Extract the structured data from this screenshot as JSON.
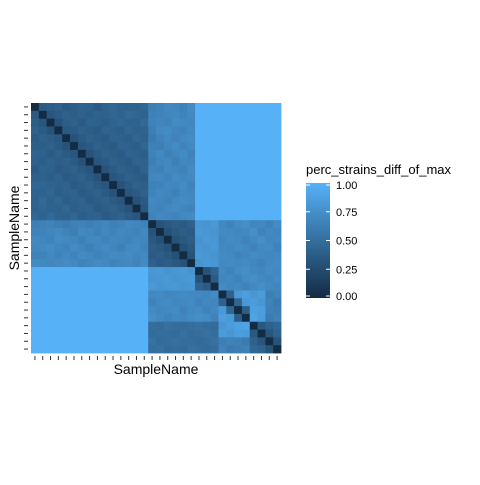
{
  "chart_data": {
    "type": "heatmap",
    "title": "",
    "xlabel": "SampleName",
    "ylabel": "SampleName",
    "legend": {
      "title": "perc_strains_diff_of_max",
      "ticks": [
        "0.00",
        "0.25",
        "0.50",
        "0.75",
        "1.00"
      ],
      "tick_values": [
        0,
        0.25,
        0.5,
        0.75,
        1.0
      ],
      "placement": "right",
      "color_low": "#132B43",
      "color_high": "#56B1F7"
    },
    "n_samples": 32,
    "x_tick_labels": "not shown",
    "y_tick_labels": "not shown",
    "grid": false,
    "value_range": [
      0,
      1
    ],
    "values": [
      [
        0.0,
        0.35,
        0.38,
        0.4,
        0.36,
        0.38,
        0.42,
        0.4,
        0.36,
        0.4,
        0.45,
        0.42,
        0.4,
        0.42,
        0.45,
        0.62,
        0.65,
        0.7,
        0.68,
        0.65,
        0.72,
        1.0,
        1.0,
        1.0,
        1.0,
        1.0,
        1.0,
        1.0,
        1.0,
        1.0,
        1.0,
        1.0
      ],
      [
        0.35,
        0.0,
        0.32,
        0.36,
        0.4,
        0.38,
        0.4,
        0.38,
        0.42,
        0.4,
        0.44,
        0.42,
        0.46,
        0.44,
        0.42,
        0.64,
        0.66,
        0.68,
        0.7,
        0.66,
        0.7,
        1.0,
        1.0,
        1.0,
        1.0,
        1.0,
        1.0,
        1.0,
        1.0,
        1.0,
        1.0,
        1.0
      ],
      [
        0.38,
        0.32,
        0.0,
        0.3,
        0.38,
        0.4,
        0.36,
        0.42,
        0.4,
        0.38,
        0.42,
        0.44,
        0.4,
        0.42,
        0.46,
        0.66,
        0.68,
        0.66,
        0.72,
        0.7,
        0.68,
        1.0,
        1.0,
        1.0,
        1.0,
        1.0,
        1.0,
        1.0,
        1.0,
        1.0,
        1.0,
        1.0
      ],
      [
        0.4,
        0.36,
        0.3,
        0.0,
        0.34,
        0.36,
        0.4,
        0.38,
        0.36,
        0.42,
        0.4,
        0.38,
        0.44,
        0.4,
        0.42,
        0.62,
        0.7,
        0.72,
        0.68,
        0.66,
        0.7,
        1.0,
        1.0,
        1.0,
        1.0,
        1.0,
        1.0,
        1.0,
        1.0,
        1.0,
        1.0,
        1.0
      ],
      [
        0.36,
        0.4,
        0.38,
        0.34,
        0.0,
        0.3,
        0.36,
        0.4,
        0.38,
        0.36,
        0.42,
        0.4,
        0.38,
        0.44,
        0.4,
        0.6,
        0.66,
        0.7,
        0.66,
        0.7,
        0.72,
        1.0,
        1.0,
        1.0,
        1.0,
        1.0,
        1.0,
        1.0,
        1.0,
        1.0,
        1.0,
        1.0
      ],
      [
        0.38,
        0.38,
        0.4,
        0.36,
        0.3,
        0.0,
        0.32,
        0.36,
        0.4,
        0.38,
        0.36,
        0.42,
        0.4,
        0.38,
        0.44,
        0.64,
        0.62,
        0.68,
        0.72,
        0.66,
        0.7,
        1.0,
        1.0,
        1.0,
        1.0,
        1.0,
        1.0,
        1.0,
        1.0,
        1.0,
        1.0,
        1.0
      ],
      [
        0.42,
        0.4,
        0.36,
        0.4,
        0.36,
        0.32,
        0.0,
        0.3,
        0.36,
        0.4,
        0.38,
        0.36,
        0.42,
        0.4,
        0.38,
        0.66,
        0.7,
        0.64,
        0.68,
        0.72,
        0.66,
        1.0,
        1.0,
        1.0,
        1.0,
        1.0,
        1.0,
        1.0,
        1.0,
        1.0,
        1.0,
        1.0
      ],
      [
        0.4,
        0.38,
        0.42,
        0.38,
        0.4,
        0.36,
        0.3,
        0.0,
        0.32,
        0.36,
        0.4,
        0.38,
        0.36,
        0.42,
        0.4,
        0.62,
        0.68,
        0.7,
        0.64,
        0.7,
        0.68,
        1.0,
        1.0,
        1.0,
        1.0,
        1.0,
        1.0,
        1.0,
        1.0,
        1.0,
        1.0,
        1.0
      ],
      [
        0.36,
        0.42,
        0.4,
        0.36,
        0.38,
        0.4,
        0.36,
        0.32,
        0.0,
        0.3,
        0.36,
        0.4,
        0.38,
        0.36,
        0.42,
        0.66,
        0.64,
        0.7,
        0.68,
        0.66,
        0.72,
        1.0,
        1.0,
        1.0,
        1.0,
        1.0,
        1.0,
        1.0,
        1.0,
        1.0,
        1.0,
        1.0
      ],
      [
        0.4,
        0.4,
        0.38,
        0.42,
        0.36,
        0.38,
        0.4,
        0.36,
        0.3,
        0.0,
        0.32,
        0.36,
        0.4,
        0.38,
        0.36,
        0.68,
        0.7,
        0.66,
        0.72,
        0.68,
        0.7,
        1.0,
        1.0,
        1.0,
        1.0,
        1.0,
        1.0,
        1.0,
        1.0,
        1.0,
        1.0,
        1.0
      ],
      [
        0.45,
        0.44,
        0.42,
        0.4,
        0.42,
        0.36,
        0.38,
        0.4,
        0.36,
        0.32,
        0.0,
        0.3,
        0.36,
        0.4,
        0.38,
        0.64,
        0.66,
        0.7,
        0.68,
        0.72,
        0.66,
        1.0,
        1.0,
        1.0,
        1.0,
        1.0,
        1.0,
        1.0,
        1.0,
        1.0,
        1.0,
        1.0
      ],
      [
        0.42,
        0.42,
        0.44,
        0.38,
        0.4,
        0.42,
        0.36,
        0.38,
        0.4,
        0.36,
        0.3,
        0.0,
        0.32,
        0.36,
        0.4,
        0.66,
        0.7,
        0.68,
        0.64,
        0.7,
        0.68,
        1.0,
        1.0,
        1.0,
        1.0,
        1.0,
        1.0,
        1.0,
        1.0,
        1.0,
        1.0,
        1.0
      ],
      [
        0.4,
        0.46,
        0.4,
        0.44,
        0.38,
        0.4,
        0.42,
        0.36,
        0.38,
        0.4,
        0.36,
        0.32,
        0.0,
        0.3,
        0.36,
        0.7,
        0.68,
        0.66,
        0.7,
        0.72,
        0.7,
        1.0,
        1.0,
        1.0,
        1.0,
        1.0,
        1.0,
        1.0,
        1.0,
        1.0,
        1.0,
        1.0
      ],
      [
        0.42,
        0.44,
        0.42,
        0.4,
        0.44,
        0.38,
        0.4,
        0.42,
        0.36,
        0.38,
        0.4,
        0.36,
        0.3,
        0.0,
        0.32,
        0.68,
        0.66,
        0.7,
        0.72,
        0.68,
        0.66,
        1.0,
        1.0,
        1.0,
        1.0,
        1.0,
        1.0,
        1.0,
        1.0,
        1.0,
        1.0,
        1.0
      ],
      [
        0.45,
        0.42,
        0.46,
        0.42,
        0.4,
        0.44,
        0.38,
        0.4,
        0.42,
        0.36,
        0.38,
        0.4,
        0.36,
        0.32,
        0.0,
        0.66,
        0.7,
        0.68,
        0.66,
        0.7,
        0.72,
        1.0,
        1.0,
        1.0,
        1.0,
        1.0,
        1.0,
        1.0,
        1.0,
        1.0,
        1.0,
        1.0
      ],
      [
        0.62,
        0.64,
        0.66,
        0.62,
        0.6,
        0.64,
        0.66,
        0.62,
        0.66,
        0.68,
        0.64,
        0.66,
        0.7,
        0.68,
        0.66,
        0.0,
        0.3,
        0.34,
        0.38,
        0.36,
        0.4,
        0.8,
        0.78,
        0.82,
        0.7,
        0.66,
        0.72,
        0.74,
        0.68,
        0.7,
        0.66,
        0.72
      ],
      [
        0.65,
        0.66,
        0.68,
        0.7,
        0.66,
        0.62,
        0.7,
        0.68,
        0.64,
        0.7,
        0.66,
        0.7,
        0.68,
        0.66,
        0.7,
        0.3,
        0.0,
        0.28,
        0.34,
        0.38,
        0.36,
        0.82,
        0.8,
        0.78,
        0.72,
        0.7,
        0.68,
        0.7,
        0.74,
        0.66,
        0.7,
        0.68
      ],
      [
        0.7,
        0.68,
        0.66,
        0.72,
        0.7,
        0.68,
        0.64,
        0.7,
        0.7,
        0.66,
        0.7,
        0.68,
        0.66,
        0.7,
        0.68,
        0.34,
        0.28,
        0.0,
        0.3,
        0.34,
        0.38,
        0.78,
        0.82,
        0.8,
        0.68,
        0.72,
        0.7,
        0.66,
        0.7,
        0.74,
        0.68,
        0.7
      ],
      [
        0.68,
        0.7,
        0.72,
        0.68,
        0.66,
        0.72,
        0.68,
        0.64,
        0.68,
        0.72,
        0.68,
        0.64,
        0.7,
        0.72,
        0.66,
        0.38,
        0.34,
        0.3,
        0.0,
        0.28,
        0.34,
        0.8,
        0.78,
        0.82,
        0.7,
        0.68,
        0.72,
        0.7,
        0.66,
        0.7,
        0.72,
        0.66
      ],
      [
        0.65,
        0.66,
        0.7,
        0.66,
        0.7,
        0.66,
        0.72,
        0.7,
        0.66,
        0.68,
        0.72,
        0.7,
        0.72,
        0.68,
        0.7,
        0.36,
        0.38,
        0.34,
        0.28,
        0.0,
        0.3,
        0.82,
        0.8,
        0.78,
        0.72,
        0.7,
        0.66,
        0.68,
        0.72,
        0.7,
        0.68,
        0.7
      ],
      [
        0.72,
        0.7,
        0.68,
        0.7,
        0.72,
        0.7,
        0.66,
        0.68,
        0.72,
        0.7,
        0.66,
        0.68,
        0.7,
        0.66,
        0.72,
        0.4,
        0.36,
        0.38,
        0.34,
        0.3,
        0.0,
        0.78,
        0.82,
        0.8,
        0.7,
        0.72,
        0.7,
        0.72,
        0.68,
        0.66,
        0.7,
        0.72
      ],
      [
        1.0,
        1.0,
        1.0,
        1.0,
        1.0,
        1.0,
        1.0,
        1.0,
        1.0,
        1.0,
        1.0,
        1.0,
        1.0,
        1.0,
        1.0,
        0.8,
        0.82,
        0.78,
        0.8,
        0.82,
        0.78,
        0.0,
        0.3,
        0.42,
        0.7,
        0.66,
        0.72,
        0.74,
        0.7,
        0.68,
        0.72,
        0.7
      ],
      [
        1.0,
        1.0,
        1.0,
        1.0,
        1.0,
        1.0,
        1.0,
        1.0,
        1.0,
        1.0,
        1.0,
        1.0,
        1.0,
        1.0,
        1.0,
        0.78,
        0.8,
        0.82,
        0.78,
        0.8,
        0.82,
        0.3,
        0.0,
        0.36,
        0.68,
        0.7,
        0.66,
        0.72,
        0.74,
        0.7,
        0.68,
        0.72
      ],
      [
        1.0,
        1.0,
        1.0,
        1.0,
        1.0,
        1.0,
        1.0,
        1.0,
        1.0,
        1.0,
        1.0,
        1.0,
        1.0,
        1.0,
        1.0,
        0.82,
        0.78,
        0.8,
        0.82,
        0.78,
        0.8,
        0.42,
        0.36,
        0.0,
        0.72,
        0.68,
        0.7,
        0.66,
        0.7,
        0.74,
        0.7,
        0.68
      ],
      [
        1.0,
        1.0,
        1.0,
        1.0,
        1.0,
        1.0,
        1.0,
        1.0,
        1.0,
        1.0,
        1.0,
        1.0,
        1.0,
        1.0,
        1.0,
        0.7,
        0.72,
        0.68,
        0.7,
        0.72,
        0.7,
        0.7,
        0.68,
        0.72,
        0.0,
        0.4,
        0.82,
        0.86,
        0.8,
        0.84,
        0.62,
        0.66
      ],
      [
        1.0,
        1.0,
        1.0,
        1.0,
        1.0,
        1.0,
        1.0,
        1.0,
        1.0,
        1.0,
        1.0,
        1.0,
        1.0,
        1.0,
        1.0,
        0.66,
        0.7,
        0.72,
        0.68,
        0.7,
        0.72,
        0.66,
        0.7,
        0.68,
        0.4,
        0.0,
        0.44,
        0.82,
        0.84,
        0.8,
        0.66,
        0.6
      ],
      [
        1.0,
        1.0,
        1.0,
        1.0,
        1.0,
        1.0,
        1.0,
        1.0,
        1.0,
        1.0,
        1.0,
        1.0,
        1.0,
        1.0,
        1.0,
        0.72,
        0.68,
        0.7,
        0.72,
        0.66,
        0.7,
        0.72,
        0.66,
        0.7,
        0.82,
        0.44,
        0.0,
        0.38,
        0.88,
        0.86,
        0.64,
        0.62
      ],
      [
        1.0,
        1.0,
        1.0,
        1.0,
        1.0,
        1.0,
        1.0,
        1.0,
        1.0,
        1.0,
        1.0,
        1.0,
        1.0,
        1.0,
        1.0,
        0.74,
        0.7,
        0.66,
        0.7,
        0.68,
        0.72,
        0.74,
        0.72,
        0.66,
        0.86,
        0.82,
        0.38,
        0.0,
        0.9,
        0.84,
        0.6,
        0.64
      ],
      [
        1.0,
        1.0,
        1.0,
        1.0,
        1.0,
        1.0,
        1.0,
        1.0,
        1.0,
        1.0,
        1.0,
        1.0,
        1.0,
        1.0,
        1.0,
        0.5,
        0.48,
        0.52,
        0.5,
        0.48,
        0.5,
        0.52,
        0.5,
        0.48,
        0.8,
        0.84,
        0.88,
        0.9,
        0.0,
        0.34,
        0.4,
        0.44
      ],
      [
        1.0,
        1.0,
        1.0,
        1.0,
        1.0,
        1.0,
        1.0,
        1.0,
        1.0,
        1.0,
        1.0,
        1.0,
        1.0,
        1.0,
        1.0,
        0.48,
        0.5,
        0.5,
        0.48,
        0.52,
        0.48,
        0.5,
        0.52,
        0.5,
        0.84,
        0.8,
        0.86,
        0.84,
        0.34,
        0.0,
        0.32,
        0.42
      ],
      [
        1.0,
        1.0,
        1.0,
        1.0,
        1.0,
        1.0,
        1.0,
        1.0,
        1.0,
        1.0,
        1.0,
        1.0,
        1.0,
        1.0,
        1.0,
        0.52,
        0.48,
        0.5,
        0.52,
        0.5,
        0.5,
        0.48,
        0.5,
        0.52,
        0.62,
        0.66,
        0.64,
        0.6,
        0.4,
        0.32,
        0.0,
        0.3
      ],
      [
        1.0,
        1.0,
        1.0,
        1.0,
        1.0,
        1.0,
        1.0,
        1.0,
        1.0,
        1.0,
        1.0,
        1.0,
        1.0,
        1.0,
        1.0,
        0.5,
        0.52,
        0.48,
        0.5,
        0.48,
        0.52,
        0.5,
        0.48,
        0.5,
        0.66,
        0.6,
        0.62,
        0.64,
        0.44,
        0.42,
        0.3,
        0.0
      ]
    ]
  }
}
